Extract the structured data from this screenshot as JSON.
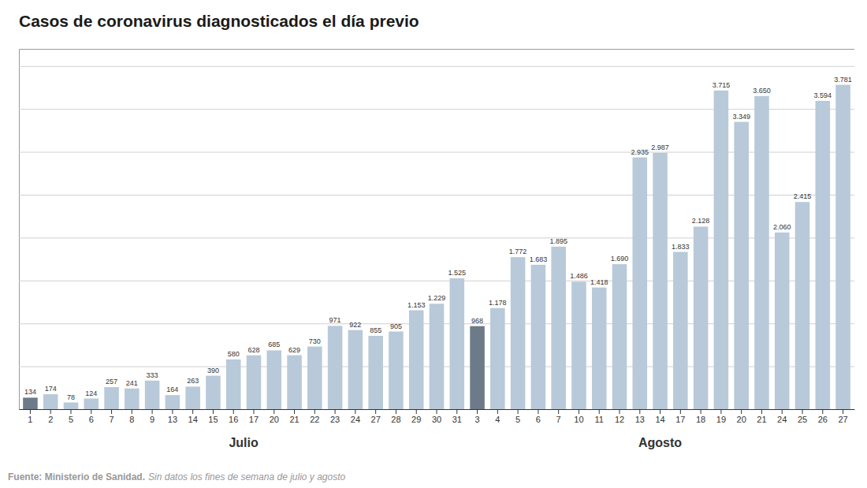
{
  "chart_data": {
    "type": "bar",
    "title": "Casos de coronavirus diagnosticados el día previo",
    "categories": [
      "1",
      "2",
      "5",
      "6",
      "7",
      "8",
      "9",
      "13",
      "14",
      "15",
      "16",
      "17",
      "20",
      "21",
      "22",
      "23",
      "24",
      "27",
      "28",
      "29",
      "30",
      "31",
      "3",
      "4",
      "5",
      "6",
      "7",
      "10",
      "11",
      "12",
      "13",
      "14",
      "17",
      "18",
      "19",
      "20",
      "21",
      "24",
      "25",
      "26",
      "27"
    ],
    "values": [
      134,
      174,
      78,
      124,
      257,
      241,
      333,
      164,
      263,
      390,
      580,
      628,
      685,
      629,
      730,
      971,
      922,
      855,
      905,
      1153,
      1229,
      1525,
      968,
      1178,
      1772,
      1683,
      1895,
      1486,
      1418,
      1690,
      2935,
      2987,
      1833,
      2128,
      3715,
      3349,
      3650,
      2060,
      2415,
      3594,
      3781
    ],
    "value_labels": [
      "134",
      "174",
      "78",
      "124",
      "257",
      "241",
      "333",
      "164",
      "263",
      "390",
      "580",
      "628",
      "685",
      "629",
      "730",
      "971",
      "922",
      "855",
      "905",
      "1.153",
      "1.229",
      "1.525",
      "968",
      "1.178",
      "1.772",
      "1.683",
      "1.895",
      "1.486",
      "1.418",
      "1.690",
      "2.935",
      "2.987",
      "1.833",
      "2.128",
      "3.715",
      "3.349",
      "3.650",
      "2.060",
      "2.415",
      "3.594",
      "3.781"
    ],
    "colors": [
      "#6c7a89",
      "#b8c9d9",
      "#b8c9d9",
      "#b8c9d9",
      "#b8c9d9",
      "#b8c9d9",
      "#b8c9d9",
      "#b8c9d9",
      "#b8c9d9",
      "#b8c9d9",
      "#b8c9d9",
      "#b8c9d9",
      "#b8c9d9",
      "#b8c9d9",
      "#b8c9d9",
      "#b8c9d9",
      "#b8c9d9",
      "#b8c9d9",
      "#b8c9d9",
      "#b8c9d9",
      "#b8c9d9",
      "#b8c9d9",
      "#6c7a89",
      "#b8c9d9",
      "#b8c9d9",
      "#b8c9d9",
      "#b8c9d9",
      "#b8c9d9",
      "#b8c9d9",
      "#b8c9d9",
      "#b8c9d9",
      "#b8c9d9",
      "#b8c9d9",
      "#b8c9d9",
      "#b8c9d9",
      "#b8c9d9",
      "#b8c9d9",
      "#b8c9d9",
      "#b8c9d9",
      "#b8c9d9",
      "#b8c9d9"
    ],
    "ylim": [
      0,
      4200
    ],
    "yticks": [
      500,
      1000,
      1500,
      2000,
      2500,
      3000,
      3500,
      4000
    ],
    "grid": true,
    "tick_labels": "x",
    "data_labels": true,
    "annotations": [
      "Julio",
      "Agosto"
    ],
    "source": [
      "Fuente: Ministerio de Sanidad.",
      "Sin datos los fines de semana de julio y agosto"
    ]
  }
}
